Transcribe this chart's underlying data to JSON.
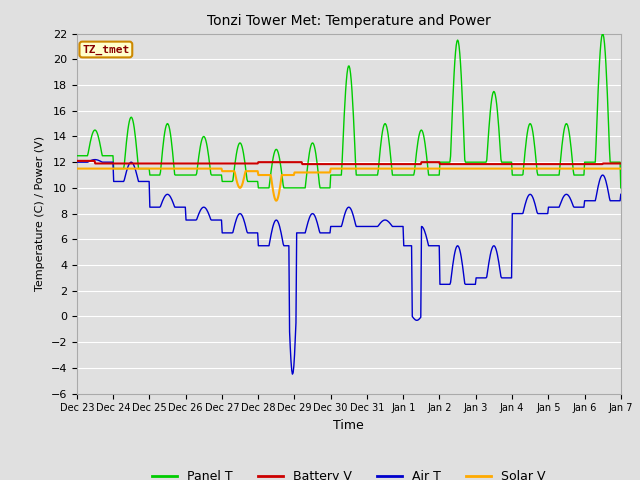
{
  "title": "Tonzi Tower Met: Temperature and Power",
  "xlabel": "Time",
  "ylabel": "Temperature (C) / Power (V)",
  "ylim": [
    -6,
    22
  ],
  "yticks": [
    -6,
    -4,
    -2,
    0,
    2,
    4,
    6,
    8,
    10,
    12,
    14,
    16,
    18,
    20,
    22
  ],
  "bg_color": "#e0e0e0",
  "plot_bg_color": "#e0e0e0",
  "grid_color": "#ffffff",
  "annotation_text": "TZ_tmet",
  "annotation_bg": "#ffffcc",
  "annotation_border": "#cc8800",
  "annotation_text_color": "#880000",
  "colors": {
    "Panel T": "#00cc00",
    "Battery V": "#cc0000",
    "Air T": "#0000cc",
    "Solar V": "#ffaa00"
  },
  "tick_labels": [
    "Dec 23",
    "Dec 24",
    "Dec 25",
    "Dec 26",
    "Dec 27",
    "Dec 28",
    "Dec 29",
    "Dec 30",
    "Dec 31",
    "Jan 1",
    "Jan 2",
    "Jan 3",
    "Jan 4",
    "Jan 5",
    "Jan 6",
    "Jan 7"
  ],
  "figwidth": 6.4,
  "figheight": 4.8,
  "dpi": 100
}
